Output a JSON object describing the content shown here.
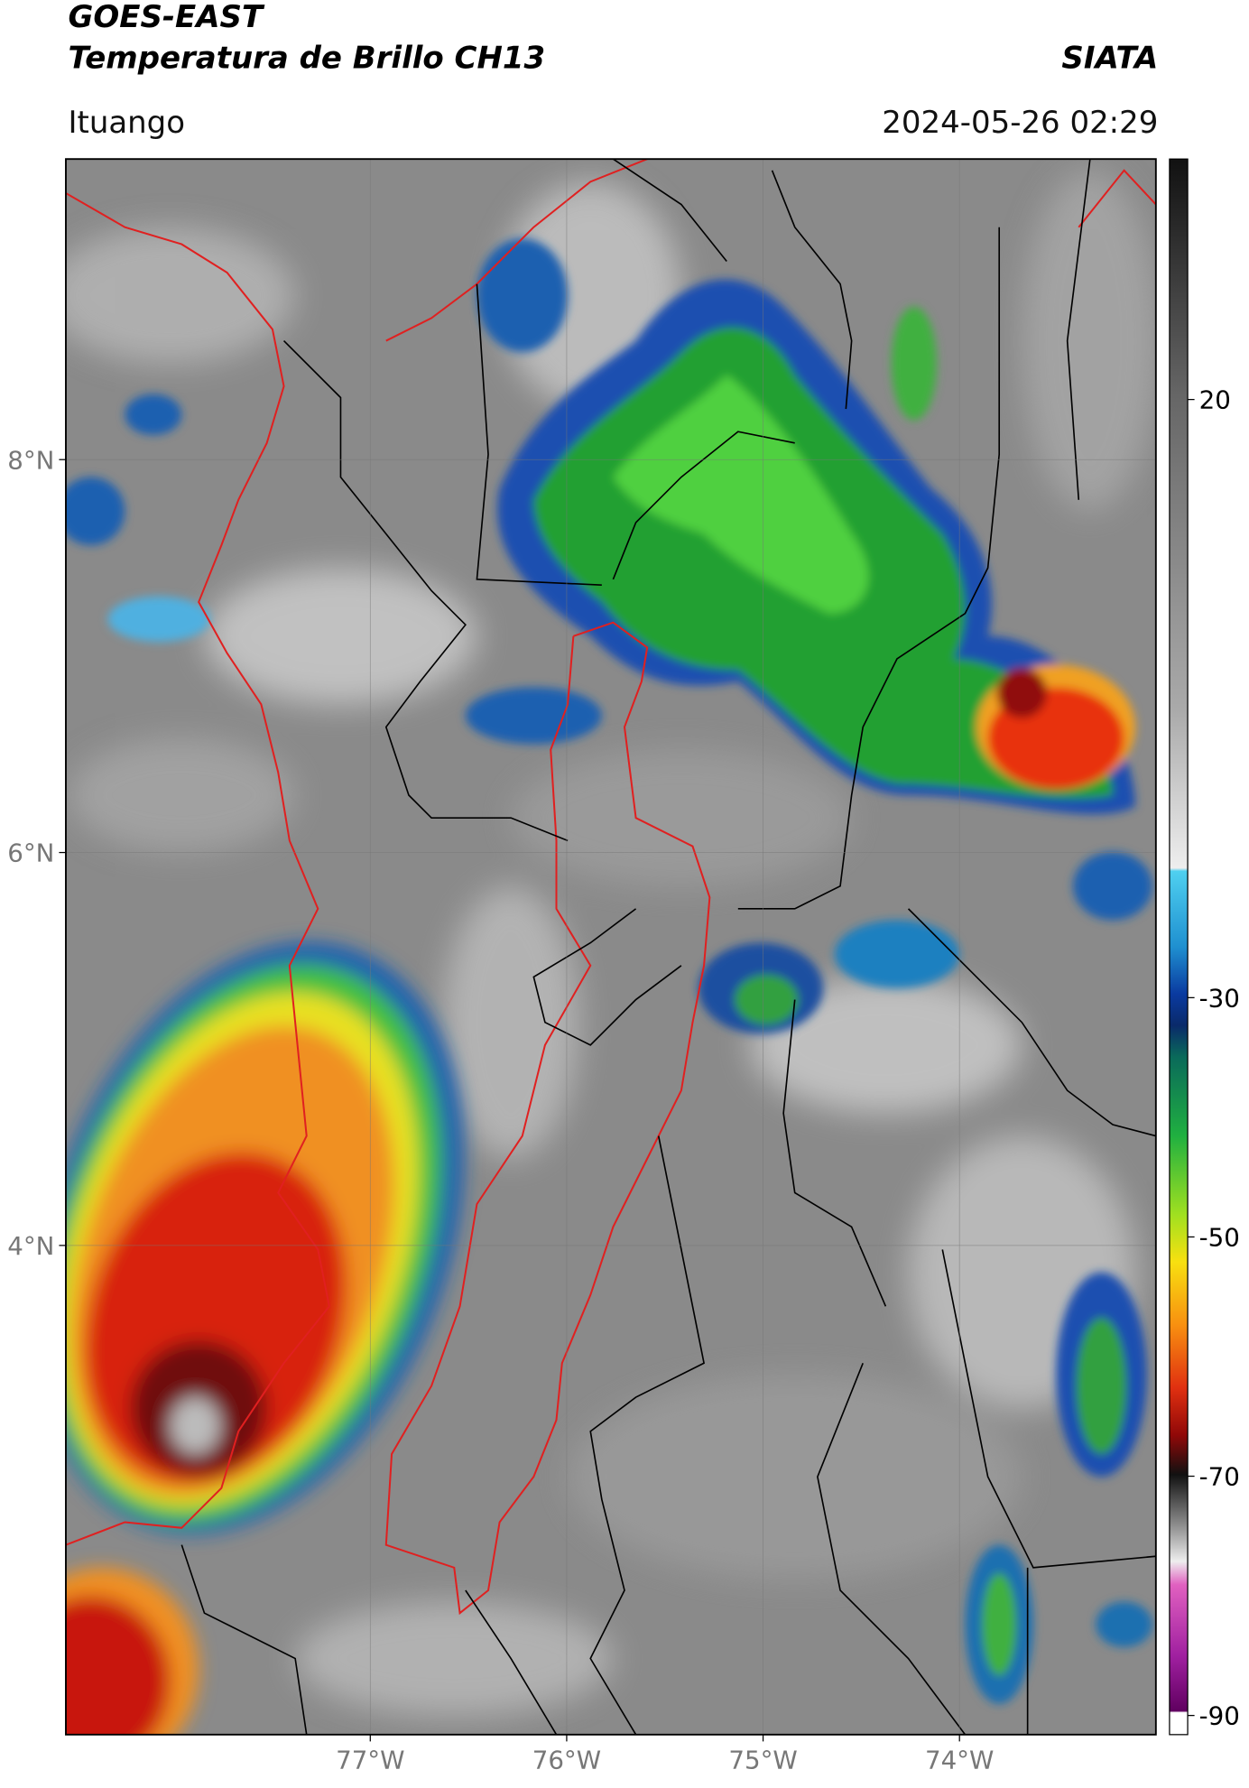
{
  "header": {
    "satellite": "GOES-EAST",
    "product": "Temperatura de Brillo CH13",
    "brand": "SIATA",
    "location": "Ituango",
    "datetime": "2024-05-26 02:29"
  },
  "map": {
    "lon_range": [
      -78.55,
      -73.0
    ],
    "lat_range": [
      1.51,
      9.53
    ],
    "lon_ticks": [
      {
        "value": -77,
        "label": "77°W"
      },
      {
        "value": -76,
        "label": "76°W"
      },
      {
        "value": -75,
        "label": "75°W"
      },
      {
        "value": -74,
        "label": "74°W"
      }
    ],
    "lat_ticks": [
      {
        "value": 8,
        "label": "8°N"
      },
      {
        "value": 6,
        "label": "6°N"
      },
      {
        "value": 4,
        "label": "4°N"
      }
    ]
  },
  "colorbar": {
    "lim": [
      -91.6,
      40.1
    ],
    "ticks": [
      20,
      -30,
      -50,
      -70,
      -90
    ]
  }
}
